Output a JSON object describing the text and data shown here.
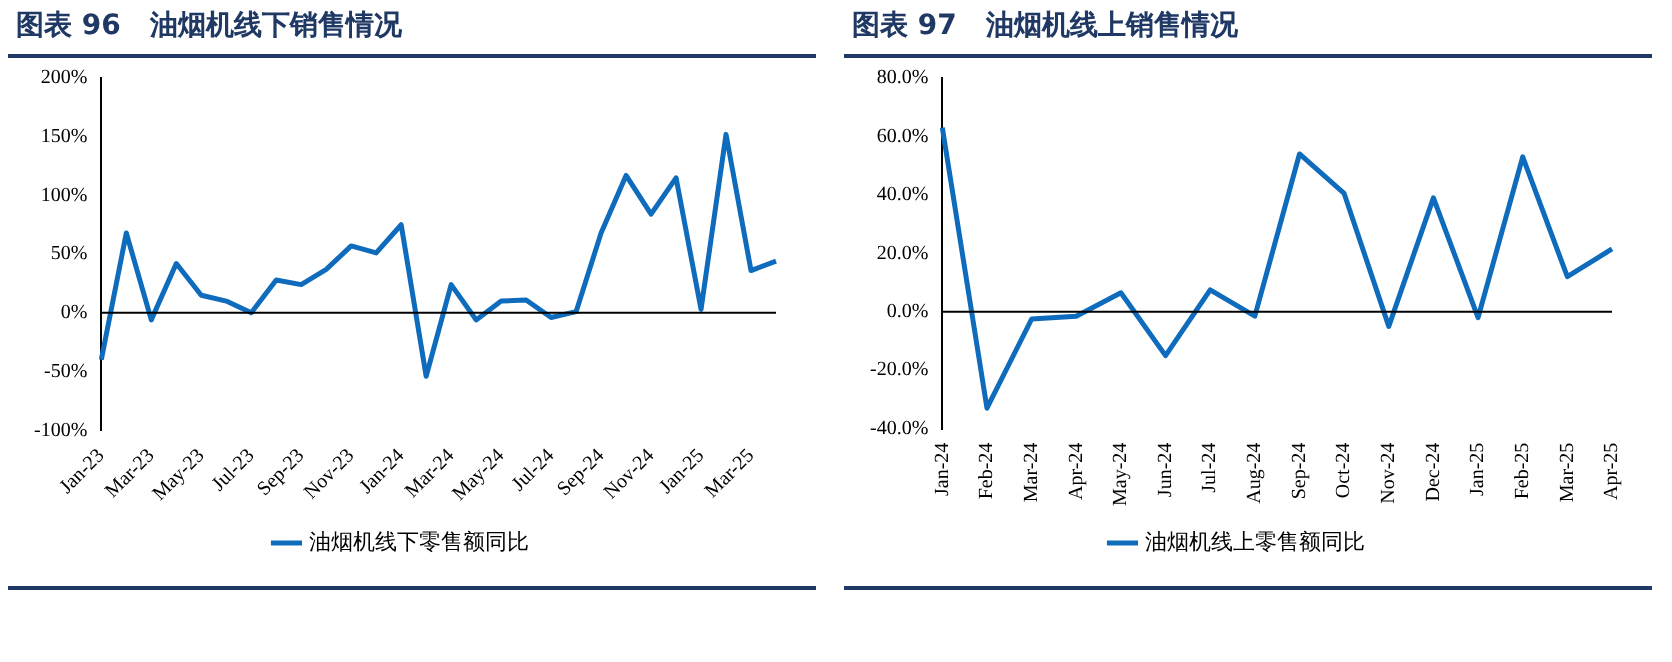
{
  "chart_data": [
    {
      "type": "line",
      "title": "图表 96   油烟机线下销售情况",
      "categories": [
        "Jan-23",
        null,
        "Mar-23",
        null,
        "May-23",
        null,
        "Jul-23",
        null,
        "Sep-23",
        null,
        "Nov-23",
        null,
        "Jan-24",
        null,
        "Mar-24",
        null,
        "May-24",
        null,
        "Jul-24",
        null,
        "Sep-24",
        null,
        "Nov-24",
        null,
        "Jan-25",
        null,
        "Mar-25",
        null
      ],
      "series": [
        {
          "name": "油烟机线下零售额同比",
          "color": "#0f6cbd",
          "values": [
            -40,
            68,
            -6,
            42,
            15,
            10,
            0,
            28,
            24,
            37,
            57,
            51,
            75,
            -54,
            24,
            -6,
            10,
            11,
            -4,
            1,
            68,
            117,
            84,
            115,
            3,
            152,
            36,
            44
          ]
        }
      ],
      "ylim": [
        -100,
        200
      ],
      "yticks": [
        {
          "value": -100,
          "label": "-100%"
        },
        {
          "value": -50,
          "label": "-50%"
        },
        {
          "value": 0,
          "label": "0%"
        },
        {
          "value": 50,
          "label": "50%"
        },
        {
          "value": 100,
          "label": "100%"
        },
        {
          "value": 150,
          "label": "150%"
        },
        {
          "value": 200,
          "label": "200%"
        }
      ],
      "grid": false,
      "legend": "bottom",
      "marker": "none",
      "line_style": "solid",
      "ref_lines": [
        {
          "axis": "y",
          "value": 0,
          "color": "#000000"
        }
      ]
    },
    {
      "type": "line",
      "title": "图表 97   油烟机线上销售情况",
      "categories": [
        "Jan-24",
        "Feb-24",
        "Mar-24",
        "Apr-24",
        "May-24",
        "Jun-24",
        "Jul-24",
        "Aug-24",
        "Sep-24",
        "Oct-24",
        "Nov-24",
        "Dec-24",
        "Jan-25",
        "Feb-25",
        "Mar-25",
        "Apr-25"
      ],
      "series": [
        {
          "name": "油烟机线上零售额同比",
          "color": "#0f6cbd",
          "values": [
            63,
            -33,
            -2.5,
            -1.5,
            6.5,
            -15,
            7.5,
            -1.5,
            54,
            40.5,
            -5,
            39,
            -2,
            53,
            12,
            21.5
          ]
        }
      ],
      "ylim": [
        -40,
        80
      ],
      "yticks": [
        {
          "value": -40,
          "label": "-40.0%"
        },
        {
          "value": -20,
          "label": "-20.0%"
        },
        {
          "value": 0,
          "label": "0.0%"
        },
        {
          "value": 20,
          "label": "20.0%"
        },
        {
          "value": 40,
          "label": "40.0%"
        },
        {
          "value": 60,
          "label": "60.0%"
        },
        {
          "value": 80,
          "label": "80.0%"
        }
      ],
      "grid": false,
      "legend": "bottom",
      "marker": "none",
      "line_style": "solid",
      "ref_lines": [
        {
          "axis": "y",
          "value": 0,
          "color": "#000000"
        }
      ]
    }
  ]
}
